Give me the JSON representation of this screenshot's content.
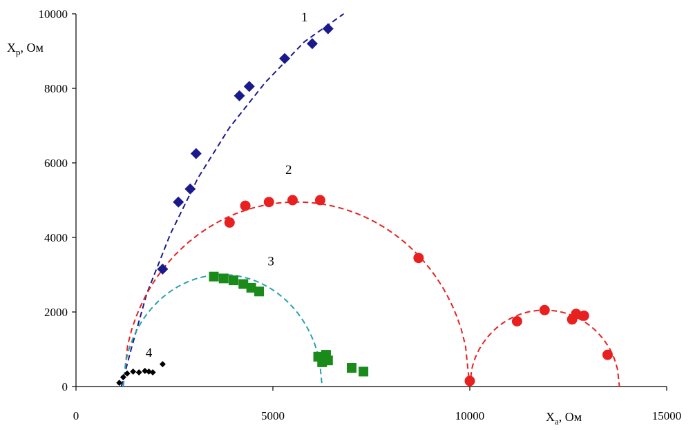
{
  "chart_data": {
    "type": "scatter",
    "xlabel": "X",
    "xlabel_sub": "a",
    "xlabel_unit": ", Ом",
    "ylabel": "X",
    "ylabel_sub": "p",
    "ylabel_unit": ", Ом",
    "xlim": [
      0,
      15000
    ],
    "ylim": [
      0,
      10000
    ],
    "x_ticks": [
      "0",
      "5000",
      "10000",
      "15000"
    ],
    "y_ticks": [
      "0",
      "2000",
      "4000",
      "6000",
      "8000",
      "10000"
    ],
    "grid": false,
    "series": [
      {
        "name": "1",
        "color": "#1a1a8c",
        "marker": "diamond",
        "points": [
          [
            2200,
            3150
          ],
          [
            2600,
            4950
          ],
          [
            2900,
            5300
          ],
          [
            3050,
            6250
          ],
          [
            4150,
            7800
          ],
          [
            4400,
            8050
          ],
          [
            5300,
            8800
          ],
          [
            6000,
            9200
          ],
          [
            6400,
            9600
          ]
        ],
        "fit": [
          [
            1150,
            0
          ],
          [
            1400,
            1000
          ],
          [
            1800,
            2500
          ],
          [
            2400,
            4100
          ],
          [
            3100,
            5600
          ],
          [
            3900,
            6950
          ],
          [
            4800,
            8150
          ],
          [
            5800,
            9250
          ],
          [
            6800,
            10000
          ]
        ]
      },
      {
        "name": "2",
        "color": "#e82020",
        "marker": "circle",
        "points": [
          [
            3900,
            4400
          ],
          [
            4300,
            4850
          ],
          [
            4900,
            4950
          ],
          [
            5500,
            5000
          ],
          [
            6200,
            5000
          ],
          [
            8700,
            3450
          ],
          [
            10000,
            150
          ],
          [
            11200,
            1750
          ],
          [
            11900,
            2050
          ],
          [
            12600,
            1800
          ],
          [
            12700,
            1950
          ],
          [
            12900,
            1900
          ],
          [
            13500,
            850
          ]
        ],
        "arcs": [
          {
            "x_from": 1200,
            "x_to": 10000,
            "x_center": 5600,
            "r": 4400,
            "y_top": 4950
          },
          {
            "x_from": 10000,
            "x_to": 13800,
            "x_center": 11900,
            "r": 1900,
            "y_top": 2050
          }
        ]
      },
      {
        "name": "3",
        "color": "#1a8a1a",
        "fit_color": "#2a9fb0",
        "marker": "square",
        "points": [
          [
            3500,
            2950
          ],
          [
            3750,
            2900
          ],
          [
            4000,
            2850
          ],
          [
            4250,
            2750
          ],
          [
            4450,
            2650
          ],
          [
            4650,
            2550
          ],
          [
            6150,
            800
          ],
          [
            6250,
            650
          ],
          [
            6400,
            700
          ],
          [
            6350,
            850
          ],
          [
            7000,
            500
          ],
          [
            7300,
            400
          ]
        ],
        "arcs": [
          {
            "x_from": 1200,
            "x_to": 6250,
            "x_center": 3725,
            "r": 2525,
            "y_top": 3000
          }
        ]
      },
      {
        "name": "4",
        "color": "#000000",
        "marker": "diamond-small",
        "points": [
          [
            1100,
            100
          ],
          [
            1200,
            250
          ],
          [
            1300,
            350
          ],
          [
            1450,
            400
          ],
          [
            1600,
            380
          ],
          [
            1750,
            420
          ],
          [
            1850,
            400
          ],
          [
            1950,
            380
          ],
          [
            2200,
            600
          ]
        ]
      }
    ],
    "curve_labels": [
      {
        "text": "1",
        "x": 5800,
        "y": 9800
      },
      {
        "text": "2",
        "x": 5400,
        "y": 5700
      },
      {
        "text": "3",
        "x": 4950,
        "y": 3250
      },
      {
        "text": "4",
        "x": 1850,
        "y": 800
      }
    ]
  }
}
